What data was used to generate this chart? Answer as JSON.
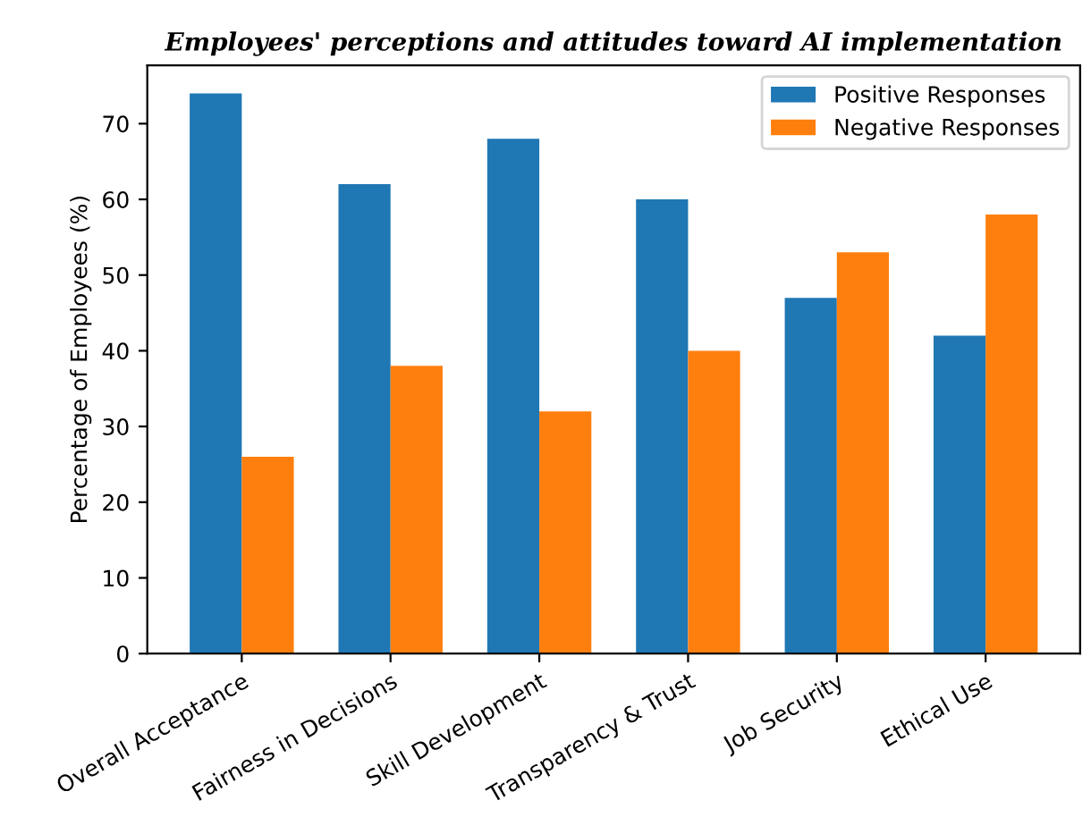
{
  "chart_data": {
    "type": "bar",
    "title": "Employees' perceptions and attitudes toward AI implementation",
    "ylabel": "Percentage of Employees (%)",
    "categories": [
      "Overall Acceptance",
      "Fairness in Decisions",
      "Skill Development",
      "Transparency & Trust",
      "Job Security",
      "Ethical Use"
    ],
    "series": [
      {
        "name": "Positive Responses",
        "color": "#1f77b4",
        "values": [
          74,
          62,
          68,
          60,
          47,
          42
        ]
      },
      {
        "name": "Negative Responses",
        "color": "#ff7f0e",
        "values": [
          26,
          38,
          32,
          40,
          53,
          58
        ]
      }
    ],
    "ylim": [
      0,
      77.7
    ],
    "yticks": [
      0,
      10,
      20,
      30,
      40,
      50,
      60,
      70
    ],
    "grid": false,
    "legend": "top right"
  }
}
